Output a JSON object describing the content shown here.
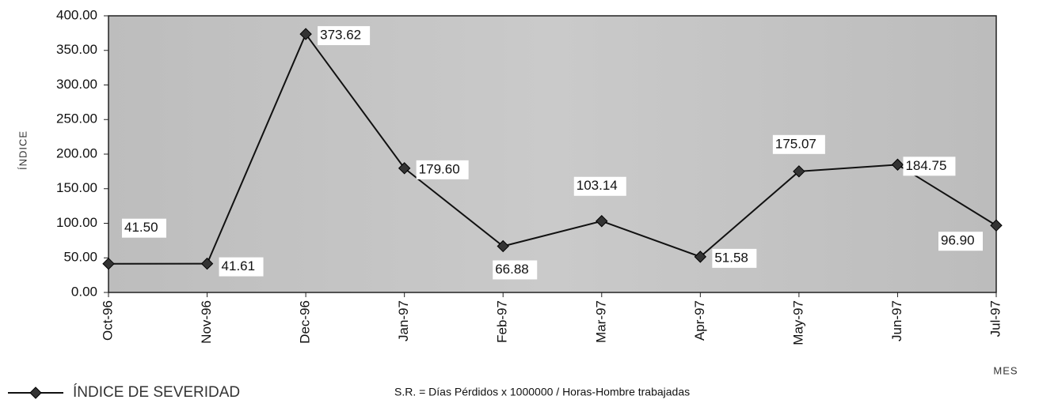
{
  "chart_data": {
    "type": "line",
    "y_label": "ÍNDICE",
    "x_label": "MES",
    "note": "S.R. = Días Pérdidos x 1000000 / Horas-Hombre trabajadas",
    "categories": [
      "Oct-96",
      "Nov-96",
      "Dec-96",
      "Jan-97",
      "Feb-97",
      "Mar-97",
      "Apr-97",
      "May-97",
      "Jun-97",
      "Jul-97"
    ],
    "series": [
      {
        "name": "ÍNDICE DE SEVERIDAD",
        "color": "#111111",
        "values": [
          41.5,
          41.61,
          373.62,
          179.6,
          66.88,
          103.14,
          51.58,
          175.07,
          184.75,
          96.9
        ],
        "value_labels": [
          "41.50",
          "41.61",
          "373.62",
          "179.60",
          "66.88",
          "103.14",
          "51.58",
          "175.07",
          "184.75",
          "96.90"
        ]
      }
    ],
    "ylim": [
      0,
      400
    ],
    "yticks": [
      {
        "value": 0,
        "label": "0.00"
      },
      {
        "value": 50,
        "label": "50.00"
      },
      {
        "value": 100,
        "label": "100.00"
      },
      {
        "value": 150,
        "label": "150.00"
      },
      {
        "value": 200,
        "label": "200.00"
      },
      {
        "value": 250,
        "label": "250.00"
      },
      {
        "value": 300,
        "label": "300.00"
      },
      {
        "value": 350,
        "label": "350.00"
      },
      {
        "value": 400,
        "label": "400.00"
      }
    ],
    "grid": false,
    "legend": "bottom-left"
  }
}
